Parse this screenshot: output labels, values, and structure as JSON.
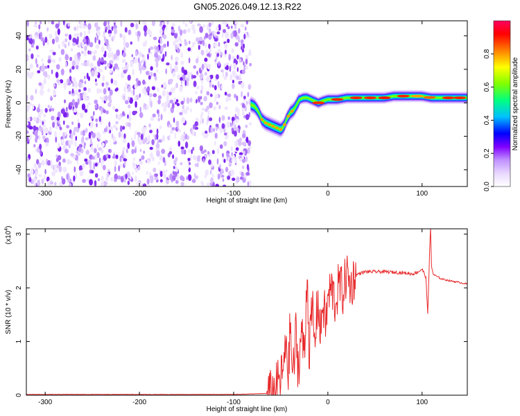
{
  "title": "GN05.2026.049.12.13.R22",
  "chart_data": [
    {
      "type": "heatmap",
      "xlabel": "Height of straight line (km)",
      "ylabel": "Frequency (Hz)",
      "xlim": [
        -320,
        148
      ],
      "ylim": [
        -50,
        49
      ],
      "xticks": [
        -300,
        -200,
        -100,
        0,
        100
      ],
      "yticks": [
        -40,
        -20,
        0,
        20,
        40
      ],
      "noise_region_x": [
        -320,
        -82
      ],
      "ridge": {
        "x": [
          -82,
          -78,
          -74,
          -70,
          -66,
          -62,
          -58,
          -54,
          -50,
          -48,
          -46,
          -44,
          -42,
          -40,
          -38,
          -36,
          -34,
          -32,
          -30,
          -26,
          -22,
          -18,
          -14,
          -10,
          -6,
          0,
          10,
          20,
          30,
          40,
          50,
          60,
          70,
          80,
          90,
          100,
          110,
          120,
          130,
          148
        ],
        "y": [
          -1,
          -2,
          -5,
          -10,
          -12,
          -13,
          -14,
          -15,
          -16,
          -15,
          -13,
          -10,
          -8,
          -6,
          -5,
          -4,
          -2,
          0,
          2,
          3,
          3,
          2,
          1,
          0,
          1,
          2,
          2,
          3,
          3,
          3,
          3,
          3,
          4,
          4,
          4,
          4,
          3,
          3,
          3,
          3
        ]
      },
      "colorbar": {
        "label": "Normalized spectral amplitude",
        "range": [
          0,
          1
        ],
        "ticks": [
          0.0,
          0.2,
          0.4,
          0.6,
          0.8
        ]
      },
      "colormap": [
        "#ffffff",
        "#e8d8ff",
        "#c090ff",
        "#8000ff",
        "#0000ff",
        "#00c0ff",
        "#00ff80",
        "#80ff00",
        "#ffff00",
        "#ff8000",
        "#ff0000",
        "#ff0060"
      ]
    },
    {
      "type": "line",
      "xlabel": "Height of straight line (km)",
      "ylabel": "SNR (10 * v/v)",
      "scale_note": "(x10",
      "scale_exp": "4",
      "scale_close": ")",
      "xlim": [
        -320,
        148
      ],
      "ylim": [
        0,
        3.1
      ],
      "xticks": [
        -300,
        -200,
        -100,
        0,
        100
      ],
      "yticks": [
        0,
        1,
        2,
        3
      ],
      "series": [
        {
          "color": "#e8282a",
          "x": [
            -320,
            -100,
            -62,
            -58,
            -54,
            -50,
            -46,
            -44,
            -42,
            -40,
            -38,
            -36,
            -34,
            -32,
            -30,
            -28,
            -26,
            -24,
            -22,
            -20,
            -18,
            -16,
            -14,
            -12,
            -10,
            -8,
            -6,
            -4,
            -2,
            0,
            4,
            8,
            12,
            16,
            20,
            24,
            28,
            32,
            40,
            60,
            80,
            90,
            96,
            100,
            104,
            106,
            108,
            109,
            110,
            112,
            120,
            130,
            140,
            148
          ],
          "y": [
            0.01,
            0.01,
            0.03,
            0.05,
            0.2,
            0.3,
            0.6,
            1.1,
            0.3,
            1.35,
            0.5,
            0.5,
            1.2,
            0.6,
            0.65,
            1.3,
            0.8,
            1.0,
            2.5,
            0.8,
            1.3,
            1.6,
            0.9,
            1.5,
            1.8,
            1.0,
            1.7,
            1.6,
            1.3,
            1.8,
            2.0,
            1.7,
            2.1,
            1.9,
            2.3,
            2.0,
            2.2,
            2.26,
            2.3,
            2.3,
            2.28,
            2.26,
            2.3,
            2.35,
            2.2,
            1.5,
            2.7,
            3.1,
            2.4,
            2.25,
            2.17,
            2.13,
            2.1,
            2.07
          ]
        }
      ]
    }
  ]
}
